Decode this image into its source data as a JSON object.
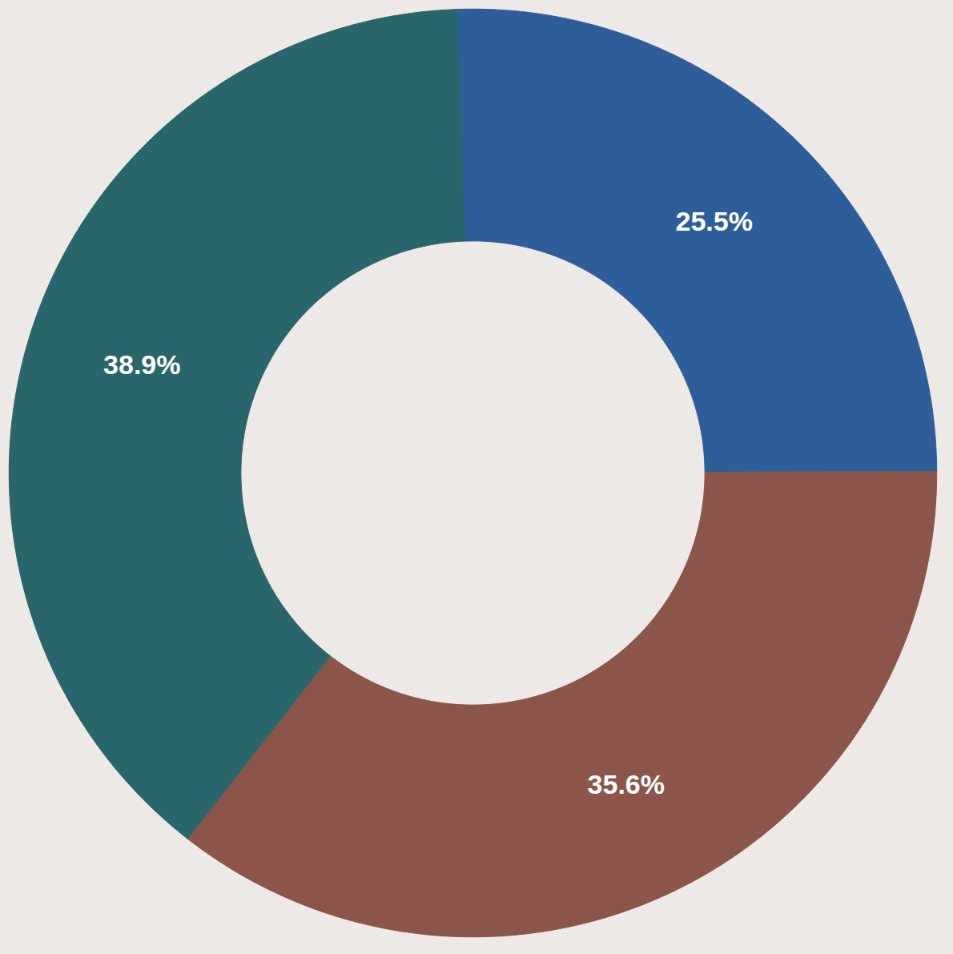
{
  "chart_data": {
    "type": "donut",
    "categories": [
      null,
      null,
      null
    ],
    "values": [
      25.5,
      35.6,
      38.9
    ],
    "value_labels": [
      "25.5%",
      "35.6%",
      "38.9%"
    ],
    "colors": [
      "#2e5e99",
      "#8b5649",
      "#29666b"
    ],
    "data_labels": true
  }
}
